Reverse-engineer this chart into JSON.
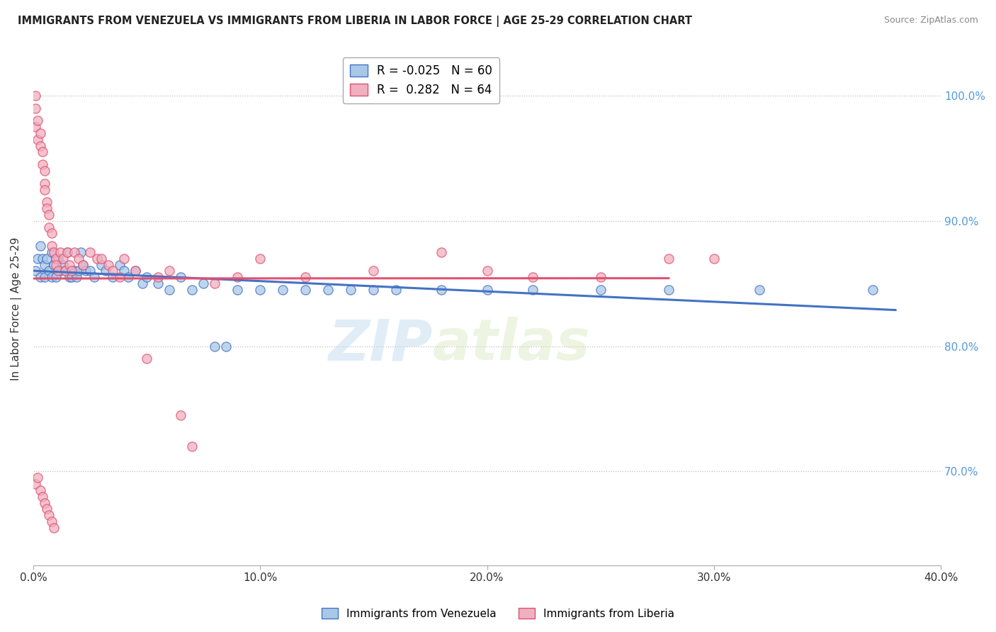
{
  "title": "IMMIGRANTS FROM VENEZUELA VS IMMIGRANTS FROM LIBERIA IN LABOR FORCE | AGE 25-29 CORRELATION CHART",
  "source": "Source: ZipAtlas.com",
  "ylabel": "In Labor Force | Age 25-29",
  "xlim": [
    0.0,
    0.4
  ],
  "ylim": [
    0.625,
    1.035
  ],
  "yticks": [
    0.7,
    0.8,
    0.9,
    1.0
  ],
  "ytick_labels": [
    "70.0%",
    "80.0%",
    "90.0%",
    "100.0%"
  ],
  "xticks": [
    0.0,
    0.1,
    0.2,
    0.3,
    0.4
  ],
  "xtick_labels": [
    "0.0%",
    "10.0%",
    "20.0%",
    "30.0%",
    "40.0%"
  ],
  "legend_R1": "-0.025",
  "legend_N1": "60",
  "legend_R2": "0.282",
  "legend_N2": "64",
  "color_venezuela": "#a8c8e8",
  "color_liberia": "#f0b0c0",
  "trendline_venezuela": "#4472c4",
  "trendline_liberia": "#e05070",
  "background_color": "#ffffff",
  "venezuela_x": [
    0.001,
    0.002,
    0.003,
    0.003,
    0.004,
    0.005,
    0.005,
    0.006,
    0.007,
    0.008,
    0.008,
    0.009,
    0.01,
    0.01,
    0.011,
    0.012,
    0.013,
    0.014,
    0.015,
    0.016,
    0.017,
    0.018,
    0.019,
    0.02,
    0.021,
    0.022,
    0.023,
    0.025,
    0.027,
    0.03,
    0.032,
    0.035,
    0.038,
    0.04,
    0.042,
    0.045,
    0.048,
    0.05,
    0.055,
    0.06,
    0.065,
    0.07,
    0.075,
    0.08,
    0.085,
    0.09,
    0.1,
    0.11,
    0.12,
    0.13,
    0.14,
    0.15,
    0.16,
    0.18,
    0.2,
    0.22,
    0.25,
    0.28,
    0.32,
    0.37
  ],
  "venezuela_y": [
    0.86,
    0.87,
    0.88,
    0.855,
    0.87,
    0.865,
    0.855,
    0.87,
    0.86,
    0.875,
    0.855,
    0.865,
    0.87,
    0.855,
    0.87,
    0.86,
    0.865,
    0.86,
    0.875,
    0.855,
    0.855,
    0.86,
    0.855,
    0.86,
    0.875,
    0.865,
    0.86,
    0.86,
    0.855,
    0.865,
    0.86,
    0.855,
    0.865,
    0.86,
    0.855,
    0.86,
    0.85,
    0.855,
    0.85,
    0.845,
    0.855,
    0.845,
    0.85,
    0.8,
    0.8,
    0.845,
    0.845,
    0.845,
    0.845,
    0.845,
    0.845,
    0.845,
    0.845,
    0.845,
    0.845,
    0.845,
    0.845,
    0.845,
    0.845,
    0.845
  ],
  "liberia_x": [
    0.001,
    0.001,
    0.001,
    0.002,
    0.002,
    0.003,
    0.003,
    0.004,
    0.004,
    0.005,
    0.005,
    0.005,
    0.006,
    0.006,
    0.007,
    0.007,
    0.008,
    0.008,
    0.009,
    0.01,
    0.01,
    0.011,
    0.012,
    0.013,
    0.014,
    0.015,
    0.016,
    0.017,
    0.018,
    0.02,
    0.022,
    0.025,
    0.028,
    0.03,
    0.033,
    0.035,
    0.038,
    0.04,
    0.045,
    0.05,
    0.055,
    0.06,
    0.065,
    0.07,
    0.08,
    0.09,
    0.1,
    0.12,
    0.15,
    0.18,
    0.2,
    0.22,
    0.25,
    0.28,
    0.3,
    0.001,
    0.002,
    0.003,
    0.004,
    0.005,
    0.006,
    0.007,
    0.008,
    0.009
  ],
  "liberia_y": [
    1.0,
    0.99,
    0.975,
    0.98,
    0.965,
    0.97,
    0.96,
    0.955,
    0.945,
    0.94,
    0.93,
    0.925,
    0.915,
    0.91,
    0.905,
    0.895,
    0.89,
    0.88,
    0.875,
    0.87,
    0.865,
    0.86,
    0.875,
    0.87,
    0.86,
    0.875,
    0.865,
    0.86,
    0.875,
    0.87,
    0.865,
    0.875,
    0.87,
    0.87,
    0.865,
    0.86,
    0.855,
    0.87,
    0.86,
    0.79,
    0.855,
    0.86,
    0.745,
    0.72,
    0.85,
    0.855,
    0.87,
    0.855,
    0.86,
    0.875,
    0.86,
    0.855,
    0.855,
    0.87,
    0.87,
    0.69,
    0.695,
    0.685,
    0.68,
    0.675,
    0.67,
    0.665,
    0.66,
    0.655
  ]
}
